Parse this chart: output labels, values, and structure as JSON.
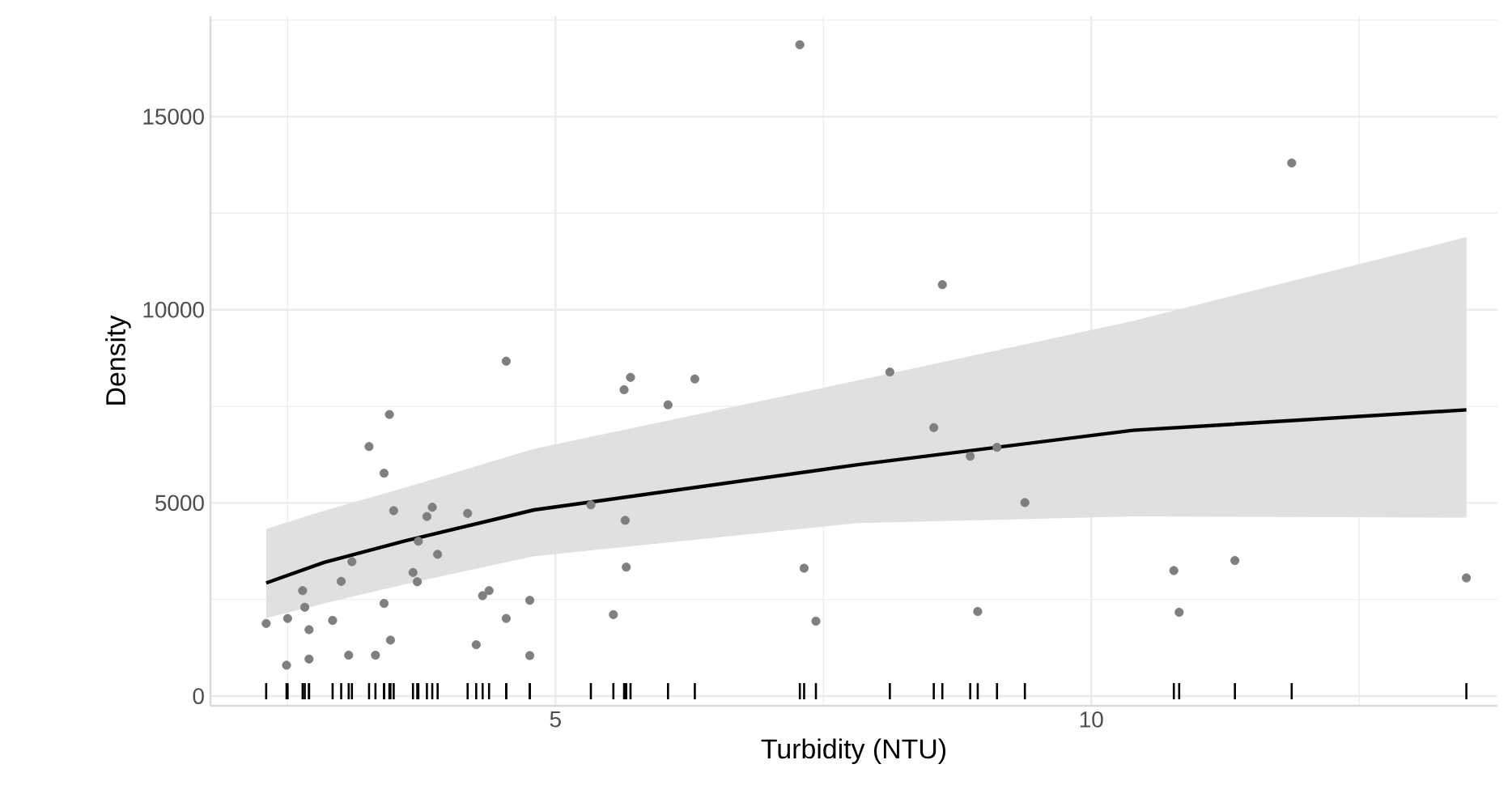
{
  "chart_data": {
    "type": "scatter",
    "xlabel": "Turbidity (NTU)",
    "ylabel": "Density",
    "xlim": [
      1.78,
      13.79
    ],
    "ylim": [
      -250,
      17600
    ],
    "xticks": [
      {
        "value": 2.5,
        "label": null
      },
      5,
      {
        "value": 7.5,
        "label": null
      },
      10,
      {
        "value": 12.5,
        "label": null
      }
    ],
    "yticks": [
      0,
      {
        "value": 2500,
        "label": null
      },
      5000,
      {
        "value": 7500,
        "label": null
      },
      10000,
      {
        "value": 12500,
        "label": null
      },
      15000,
      {
        "value": 17500,
        "label": null
      }
    ],
    "grid": true,
    "series": [
      {
        "type": "scatter",
        "color": "#7f7f7f",
        "marker": "circle",
        "x": [
          2.3,
          2.5,
          2.49,
          2.64,
          2.66,
          2.7,
          2.7,
          2.92,
          3.0,
          3.07,
          3.1,
          3.26,
          3.4,
          3.4,
          3.32,
          3.46,
          3.45,
          3.49,
          3.67,
          3.71,
          3.72,
          3.8,
          3.85,
          3.9,
          4.18,
          4.26,
          4.32,
          4.38,
          4.54,
          4.54,
          4.76,
          4.76,
          5.33,
          5.64,
          5.7,
          5.65,
          5.66,
          5.54,
          6.05,
          6.3,
          7.32,
          7.43,
          8.12,
          8.53,
          8.87,
          9.12,
          8.94,
          9.38,
          10.77,
          10.82,
          11.34,
          11.87,
          13.5,
          7.28,
          8.61
        ],
        "values": [
          1880,
          2010,
          800,
          2730,
          2300,
          1720,
          960,
          1960,
          2970,
          1060,
          3480,
          6460,
          5770,
          2400,
          1060,
          1450,
          7290,
          4800,
          3200,
          2960,
          4010,
          4650,
          4890,
          3670,
          4730,
          1330,
          2600,
          2730,
          8670,
          2010,
          2480,
          1050,
          4950,
          7930,
          8250,
          4550,
          3340,
          2110,
          7540,
          8210,
          3310,
          1940,
          8390,
          6950,
          6210,
          6440,
          2190,
          5010,
          3250,
          2170,
          3510,
          13800,
          3060,
          16860,
          10650
        ]
      },
      {
        "type": "line",
        "color": "#000000",
        "line_style": "solid",
        "marker": "none",
        "x": [
          2.3,
          2.84,
          3.6,
          4.8,
          7.82,
          10.39,
          13.5
        ],
        "values": [
          2930,
          3460,
          4020,
          4820,
          5990,
          6880,
          7410
        ],
        "lower": [
          2020,
          2400,
          2900,
          3620,
          4480,
          4650,
          4620
        ],
        "upper": [
          4330,
          4800,
          5400,
          6400,
          8170,
          9710,
          11880
        ]
      }
    ]
  }
}
